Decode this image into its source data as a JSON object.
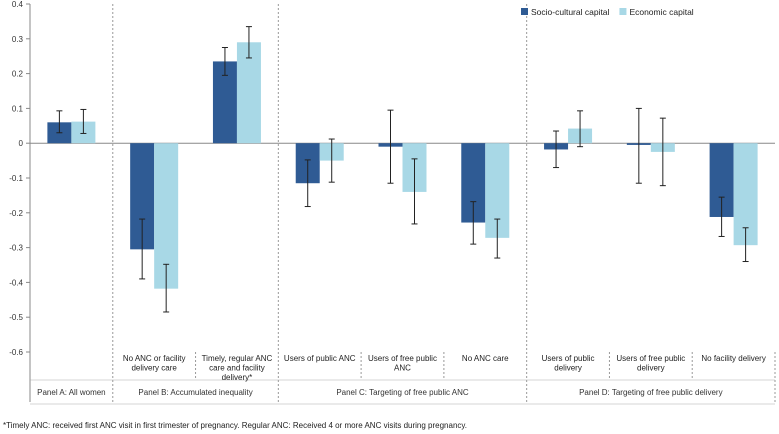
{
  "chart_data": {
    "type": "bar",
    "title": "",
    "xlabel": "",
    "ylabel": "",
    "ylim": [
      -0.6,
      0.4
    ],
    "yticks": [
      0.4,
      0.3,
      0.2,
      0.1,
      0,
      -0.1,
      -0.2,
      -0.3,
      -0.4,
      -0.5,
      -0.6
    ],
    "ytick_labels": [
      "0.4",
      "0.3",
      "0.2",
      "0.1",
      "0",
      "-0.1",
      "-0.2",
      "-0.3",
      "-0.4",
      "-0.5",
      "-0.6"
    ],
    "legend_position": "top-right",
    "categories": [
      "",
      "No ANC or facility delivery care",
      "Timely, regular ANC care and facility delivery*",
      "Users of public ANC",
      "Users of free public ANC",
      "No ANC care",
      "Users of public delivery",
      "Users of free public delivery",
      "No facility delivery"
    ],
    "panels": [
      {
        "label": "Panel A: All women",
        "start": 0,
        "count": 1
      },
      {
        "label": "Panel B: Accumulated inequality",
        "start": 1,
        "count": 2
      },
      {
        "label": "Panel C: Targeting of free public ANC",
        "start": 3,
        "count": 3
      },
      {
        "label": "Panel D: Targeting of free public delivery",
        "start": 6,
        "count": 3
      }
    ],
    "series": [
      {
        "name": "Socio-cultural capital",
        "color": "#2f5b94",
        "values": [
          0.06,
          -0.305,
          0.235,
          -0.115,
          -0.01,
          -0.228,
          -0.018,
          -0.005,
          -0.212
        ],
        "ci_low": [
          0.03,
          -0.39,
          0.195,
          -0.182,
          -0.115,
          -0.29,
          -0.07,
          -0.115,
          -0.268
        ],
        "ci_high": [
          0.093,
          -0.218,
          0.275,
          -0.048,
          0.095,
          -0.168,
          0.035,
          0.1,
          -0.155
        ]
      },
      {
        "name": "Economic capital",
        "color": "#a8d8e6",
        "values": [
          0.062,
          -0.418,
          0.29,
          -0.05,
          -0.14,
          -0.272,
          0.042,
          -0.025,
          -0.293
        ],
        "ci_low": [
          0.028,
          -0.485,
          0.245,
          -0.112,
          -0.232,
          -0.33,
          -0.01,
          -0.122,
          -0.34
        ],
        "ci_high": [
          0.097,
          -0.348,
          0.335,
          0.012,
          -0.045,
          -0.218,
          0.093,
          0.072,
          -0.243
        ]
      }
    ],
    "footnote": "*Timely ANC: received first ANC visit in first trimester of pregnancy. Regular ANC: Received 4 or more ANC visits during pregnancy.",
    "grid": false
  }
}
